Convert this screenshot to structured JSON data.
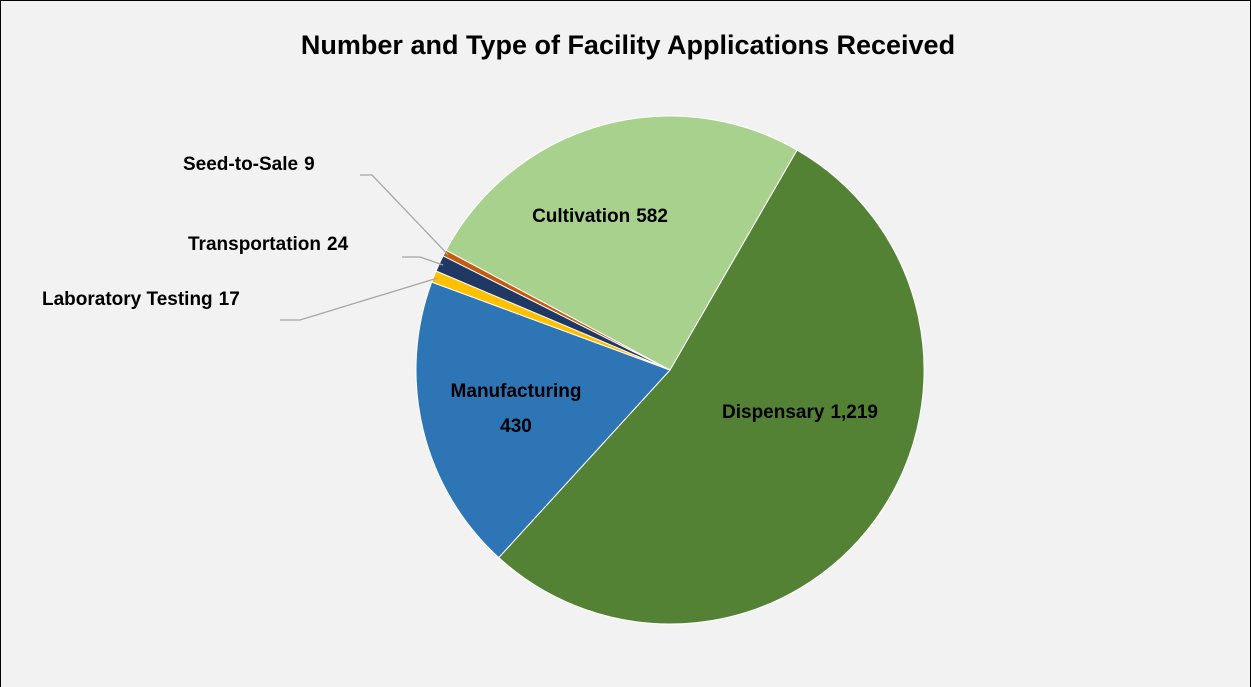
{
  "chart_data": {
    "type": "pie",
    "title": "Number and Type of Facility Applications Received",
    "categories": [
      "Dispensary",
      "Manufacturing",
      "Laboratory Testing",
      "Transportation",
      "Seed-to-Sale",
      "Cultivation"
    ],
    "values": [
      1219,
      430,
      17,
      24,
      9,
      582
    ],
    "value_labels": [
      "1,219",
      "430",
      "17",
      "24",
      "9",
      "582"
    ],
    "colors": [
      "#548235",
      "#2e75b6",
      "#ffc000",
      "#203864",
      "#c55a11",
      "#a9d18e"
    ]
  }
}
